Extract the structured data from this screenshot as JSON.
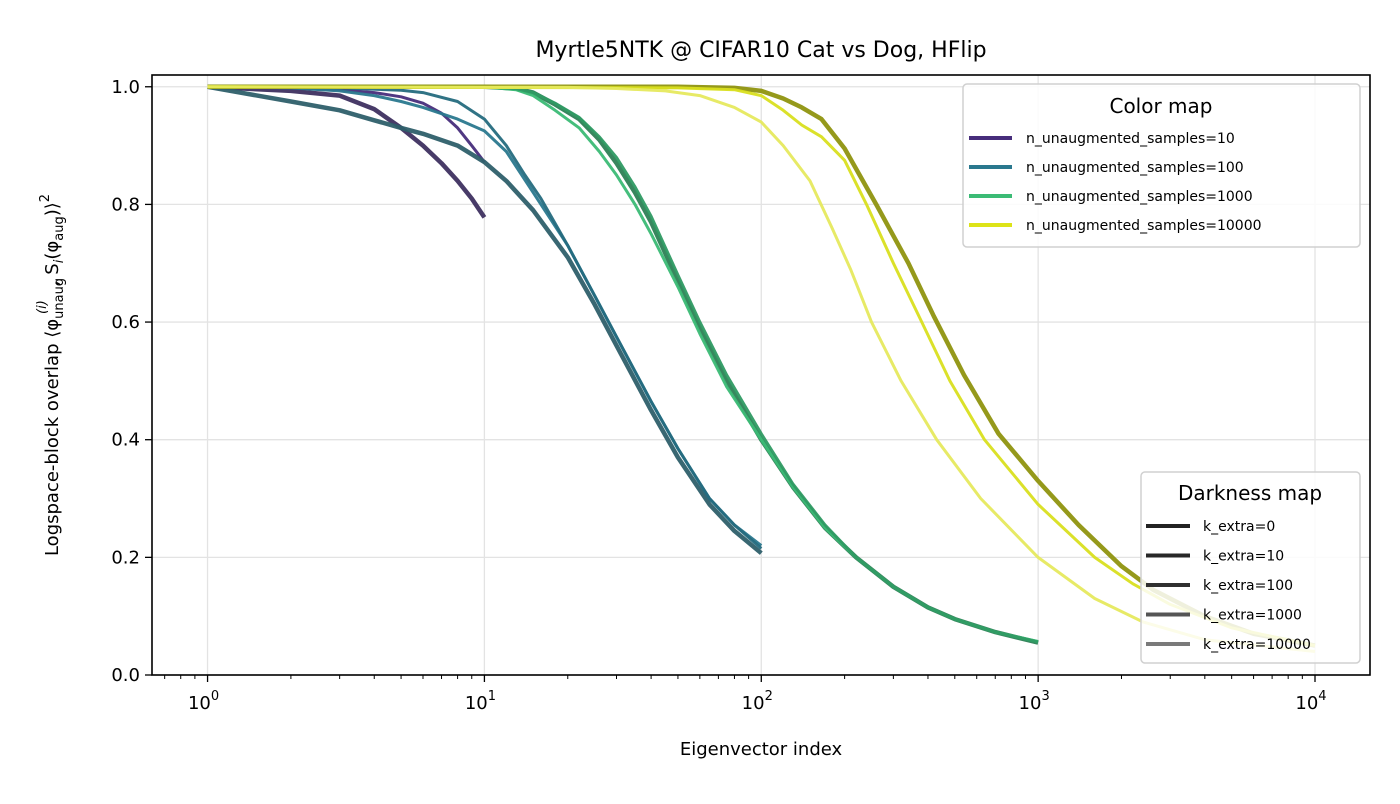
{
  "chart_data": {
    "type": "line",
    "title": "Myrtle5NTK @ CIFAR10 Cat vs Dog, HFlip",
    "xlabel": "Eigenvector index",
    "ylabel_text": "Logspace-block overlap ⟨φ",
    "ylabel_sub": "unaug",
    "ylabel_sup": "(i)",
    "ylabel_mid": ", S",
    "ylabel_sub2": "i",
    "ylabel_mid2": "(φ",
    "ylabel_sub3": "aug",
    "ylabel_end": ")⟩",
    "ylabel_sup2": "2",
    "xscale": "log",
    "xlim": [
      0.63,
      15800
    ],
    "ylim": [
      0,
      1.02
    ],
    "grid": true,
    "xticks": [
      {
        "base": "10",
        "exp": "0",
        "value": 1
      },
      {
        "base": "10",
        "exp": "1",
        "value": 10
      },
      {
        "base": "10",
        "exp": "2",
        "value": 100
      },
      {
        "base": "10",
        "exp": "3",
        "value": 1000
      },
      {
        "base": "10",
        "exp": "4",
        "value": 10000
      }
    ],
    "yticks": [
      "0.0",
      "0.2",
      "0.4",
      "0.6",
      "0.8",
      "1.0"
    ],
    "legend_color": {
      "title": "Color map",
      "placement": "top-right",
      "entries": [
        {
          "label": "n_unaugmented_samples=10",
          "color": "#472d7b"
        },
        {
          "label": "n_unaugmented_samples=100",
          "color": "#2a788e"
        },
        {
          "label": "n_unaugmented_samples=1000",
          "color": "#3bbb75"
        },
        {
          "label": "n_unaugmented_samples=10000",
          "color": "#dde318"
        }
      ]
    },
    "legend_darkness": {
      "title": "Darkness map",
      "placement": "bottom-right",
      "entries": [
        {
          "label": "k_extra=0",
          "color": "#222222"
        },
        {
          "label": "k_extra=10",
          "color": "#282828"
        },
        {
          "label": "k_extra=100",
          "color": "#303030"
        },
        {
          "label": "k_extra=1000",
          "color": "#555555"
        },
        {
          "label": "k_extra=10000",
          "color": "#7a7a7a"
        }
      ]
    },
    "series": [
      {
        "n": 10,
        "color": "#3e3060",
        "x": [
          1,
          2,
          3,
          4,
          5,
          6,
          7,
          8,
          9,
          10
        ],
        "y": [
          1.0,
          0.993,
          0.985,
          0.962,
          0.93,
          0.9,
          0.87,
          0.84,
          0.81,
          0.778
        ]
      },
      {
        "n": 10,
        "color": "#472d7b",
        "x": [
          1,
          2,
          3,
          4,
          5,
          6,
          7,
          8,
          9,
          10
        ],
        "y": [
          1.0,
          0.998,
          0.995,
          0.99,
          0.983,
          0.972,
          0.955,
          0.93,
          0.9,
          0.872
        ]
      },
      {
        "n": 100,
        "color": "#2e5f6a",
        "x": [
          1,
          2,
          3,
          4,
          5,
          6,
          8,
          10,
          12,
          15,
          20,
          25,
          30,
          40,
          50,
          65,
          80,
          100
        ],
        "y": [
          1.0,
          0.975,
          0.96,
          0.943,
          0.93,
          0.92,
          0.9,
          0.872,
          0.84,
          0.79,
          0.71,
          0.63,
          0.56,
          0.45,
          0.37,
          0.29,
          0.245,
          0.207
        ]
      },
      {
        "n": 100,
        "color": "#2a788e",
        "x": [
          1,
          2,
          3,
          4,
          5,
          6,
          8,
          10,
          12,
          15,
          20,
          25,
          30,
          40,
          50,
          65,
          80,
          100
        ],
        "y": [
          1.0,
          0.998,
          0.993,
          0.985,
          0.975,
          0.965,
          0.945,
          0.925,
          0.89,
          0.82,
          0.73,
          0.645,
          0.575,
          0.465,
          0.385,
          0.3,
          0.255,
          0.22
        ]
      },
      {
        "n": 100,
        "color": "#256c7e",
        "x": [
          1,
          3,
          5,
          6,
          8,
          10,
          12,
          14,
          16,
          20,
          25,
          30,
          40,
          50,
          65,
          80,
          100
        ],
        "y": [
          1.0,
          0.998,
          0.994,
          0.99,
          0.975,
          0.945,
          0.9,
          0.85,
          0.81,
          0.73,
          0.645,
          0.575,
          0.465,
          0.385,
          0.3,
          0.255,
          0.215
        ]
      },
      {
        "n": 1000,
        "color": "#2d7f55",
        "x": [
          1,
          10,
          13,
          15,
          18,
          22,
          26,
          30,
          35,
          40,
          50,
          60,
          75,
          100,
          130,
          170,
          220,
          300,
          400,
          500,
          700,
          1000
        ],
        "y": [
          1.0,
          1.0,
          0.997,
          0.99,
          0.97,
          0.945,
          0.91,
          0.87,
          0.82,
          0.77,
          0.67,
          0.59,
          0.5,
          0.4,
          0.32,
          0.25,
          0.2,
          0.15,
          0.115,
          0.095,
          0.073,
          0.055
        ]
      },
      {
        "n": 1000,
        "color": "#3bbb75",
        "x": [
          1,
          10,
          13,
          15,
          18,
          22,
          26,
          30,
          35,
          40,
          50,
          60,
          75,
          100,
          130,
          170,
          220,
          300,
          400,
          500,
          700,
          1000
        ],
        "y": [
          1.0,
          1.0,
          0.995,
          0.985,
          0.96,
          0.93,
          0.89,
          0.85,
          0.8,
          0.75,
          0.66,
          0.58,
          0.49,
          0.4,
          0.32,
          0.25,
          0.2,
          0.15,
          0.115,
          0.095,
          0.073,
          0.057
        ]
      },
      {
        "n": 1000,
        "color": "#2f9a63",
        "x": [
          1,
          10,
          13,
          15,
          18,
          22,
          26,
          30,
          35,
          40,
          50,
          60,
          75,
          100,
          130,
          170,
          220,
          300,
          400,
          500,
          700,
          1000
        ],
        "y": [
          1.0,
          1.0,
          0.997,
          0.99,
          0.972,
          0.948,
          0.915,
          0.88,
          0.83,
          0.78,
          0.68,
          0.6,
          0.51,
          0.41,
          0.325,
          0.255,
          0.2,
          0.15,
          0.115,
          0.095,
          0.073,
          0.056
        ]
      },
      {
        "n": 10000,
        "color": "#8f940f",
        "x": [
          1,
          50,
          80,
          100,
          120,
          140,
          165,
          200,
          260,
          340,
          420,
          540,
          720,
          1000,
          1400,
          2000,
          2600,
          4000,
          6000,
          10000
        ],
        "y": [
          1.0,
          1.0,
          0.998,
          0.993,
          0.98,
          0.965,
          0.945,
          0.895,
          0.8,
          0.7,
          0.61,
          0.51,
          0.41,
          0.33,
          0.255,
          0.185,
          0.145,
          0.1,
          0.07,
          0.05
        ]
      },
      {
        "n": 10000,
        "color": "#d9df1f",
        "x": [
          1,
          50,
          80,
          100,
          120,
          140,
          165,
          200,
          240,
          300,
          380,
          480,
          640,
          1000,
          1600,
          2200,
          3000,
          5000,
          10000
        ],
        "y": [
          1.0,
          0.998,
          0.995,
          0.985,
          0.96,
          0.935,
          0.915,
          0.875,
          0.8,
          0.7,
          0.6,
          0.5,
          0.4,
          0.29,
          0.2,
          0.155,
          0.12,
          0.08,
          0.05
        ]
      },
      {
        "n": 10000,
        "color": "#e6e95e",
        "x": [
          1,
          20,
          30,
          45,
          60,
          80,
          100,
          120,
          150,
          180,
          210,
          250,
          320,
          430,
          620,
          1000,
          1600,
          2400,
          4000,
          10000
        ],
        "y": [
          1.0,
          0.999,
          0.997,
          0.993,
          0.985,
          0.965,
          0.94,
          0.9,
          0.84,
          0.76,
          0.69,
          0.6,
          0.5,
          0.4,
          0.3,
          0.2,
          0.13,
          0.09,
          0.06,
          0.04
        ]
      }
    ]
  }
}
